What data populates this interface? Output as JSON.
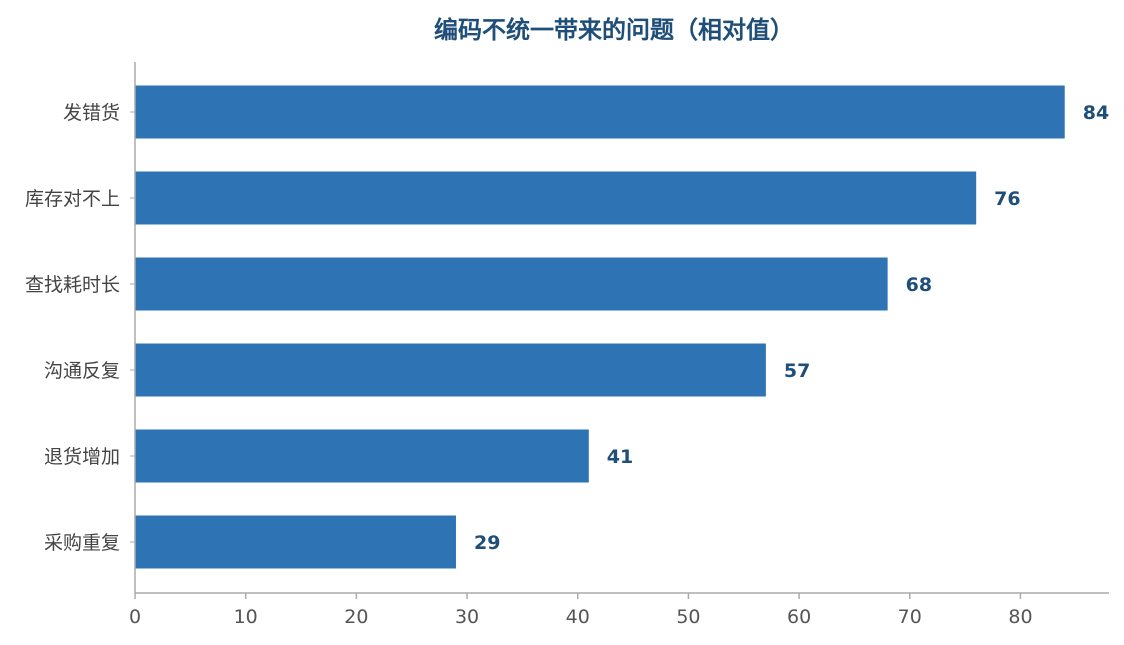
{
  "chart_data": {
    "type": "bar",
    "orientation": "horizontal",
    "title": "编码不统一带来的问题（相对值）",
    "categories": [
      "发错货",
      "库存对不上",
      "查找耗时长",
      "沟通反复",
      "退货增加",
      "采购重复"
    ],
    "values": [
      84,
      76,
      68,
      57,
      41,
      29
    ],
    "x_ticks": [
      0,
      10,
      20,
      30,
      40,
      50,
      60,
      70,
      80
    ],
    "xlim": [
      0,
      88
    ],
    "xlabel": "",
    "ylabel": "",
    "grid": false,
    "legend": "none",
    "data_labels": true,
    "colors": {
      "bar": "#2e74b5",
      "title": "#1f4e79",
      "data_label": "#1f4e79",
      "axis": "#aaaaaa"
    }
  }
}
